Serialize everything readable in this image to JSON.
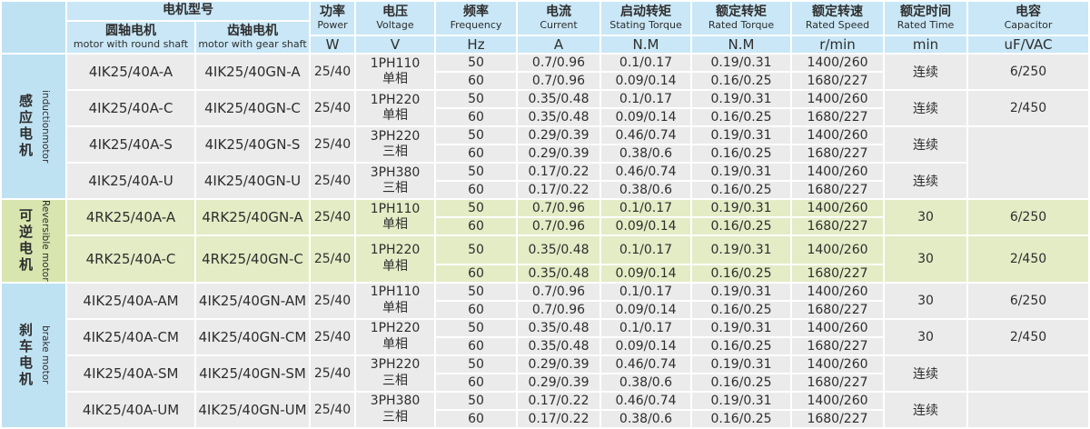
{
  "colors": {
    "header_blue": "#c9e7f6",
    "category_blue": "#bfe2f3",
    "category_green": "#d8e5ae",
    "row_gray": "#ebebec",
    "row_green": "#e3ecc5",
    "text": "#2e2e2e"
  },
  "header": {
    "model_group": "电机型号",
    "columns": [
      {
        "cn": "圆轴电机",
        "en": "motor with round shaft"
      },
      {
        "cn": "齿轴电机",
        "en": "motor with gear shaft"
      },
      {
        "cn": "功率",
        "en": "Power",
        "unit": "W"
      },
      {
        "cn": "电压",
        "en": "Voltage",
        "unit": "V"
      },
      {
        "cn": "频率",
        "en": "Frequency",
        "unit": "Hz"
      },
      {
        "cn": "电流",
        "en": "Current",
        "unit": "A"
      },
      {
        "cn": "启动转矩",
        "en": "Stating Torque",
        "unit": "N.M"
      },
      {
        "cn": "额定转矩",
        "en": "Rated Torque",
        "unit": "N.M"
      },
      {
        "cn": "额定转速",
        "en": "Rated Speed",
        "unit": "r/min"
      },
      {
        "cn": "额定时间",
        "en": "Rated Time",
        "unit": "min"
      },
      {
        "cn": "电容",
        "en": "Capacitor",
        "unit": "uF/VAC"
      }
    ]
  },
  "sections": [
    {
      "id": "induction",
      "cn": "感应电机",
      "en": "inductionmotor",
      "theme": "blue",
      "groups": [
        {
          "round": "4IK25/40A-A",
          "gear": "4IK25/40GN-A",
          "power": "25/40",
          "voltage": [
            "1PH110",
            "单相"
          ],
          "rows": [
            [
              "50",
              "0.7/0.96",
              "0.1/0.17",
              "0.19/0.31",
              "1400/260"
            ],
            [
              "60",
              "0.7/0.96",
              "0.09/0.14",
              "0.16/0.25",
              "1680/227"
            ]
          ],
          "time": "连续",
          "cap": "6/250"
        },
        {
          "round": "4IK25/40A-C",
          "gear": "4IK25/40GN-C",
          "power": "25/40",
          "voltage": [
            "1PH220",
            "单相"
          ],
          "rows": [
            [
              "50",
              "0.35/0.48",
              "0.1/0.17",
              "0.19/0.31",
              "1400/260"
            ],
            [
              "60",
              "0.35/0.48",
              "0.09/0.14",
              "0.16/0.25",
              "1680/227"
            ]
          ],
          "time": "连续",
          "cap": "2/450"
        },
        {
          "round": "4IK25/40A-S",
          "gear": "4IK25/40GN-S",
          "power": "25/40",
          "voltage": [
            "3PH220",
            "三相"
          ],
          "rows": [
            [
              "50",
              "0.29/0.39",
              "0.46/0.74",
              "0.19/0.31",
              "1400/260"
            ],
            [
              "60",
              "0.29/0.39",
              "0.38/0.6",
              "0.16/0.25",
              "1680/227"
            ]
          ],
          "time": "连续",
          "cap": "",
          "capMerge": true
        },
        {
          "round": "4IK25/40A-U",
          "gear": "4IK25/40GN-U",
          "power": "25/40",
          "voltage": [
            "3PH380",
            "三相"
          ],
          "rows": [
            [
              "50",
              "0.17/0.22",
              "0.46/0.74",
              "0.19/0.31",
              "1400/260"
            ],
            [
              "60",
              "0.17/0.22",
              "0.38/0.6",
              "0.16/0.25",
              "1680/227"
            ]
          ],
          "time": "连续",
          "capSkip": true
        }
      ]
    },
    {
      "id": "reversible",
      "cn": "可逆电机",
      "en": "Reversible motor",
      "theme": "green",
      "groups": [
        {
          "round": "4RK25/40A-A",
          "gear": "4RK25/40GN-A",
          "power": "25/40",
          "voltage": [
            "1PH110",
            "单相"
          ],
          "rows": [
            [
              "50",
              "0.7/0.96",
              "0.1/0.17",
              "0.19/0.31",
              "1400/260"
            ],
            [
              "60",
              "0.7/0.96",
              "0.09/0.14",
              "0.16/0.25",
              "1680/227"
            ]
          ],
          "time": "30",
          "cap": "6/250"
        },
        {
          "round": "4RK25/40A-C",
          "gear": "4RK25/40GN-C",
          "power": "25/40",
          "voltage": [
            "1PH220",
            "单相"
          ],
          "rows": [
            [
              "50",
              "0.35/0.48",
              "0.1/0.17",
              "0.19/0.31",
              "1400/260"
            ],
            [
              "60",
              "0.35/0.48",
              "0.09/0.14",
              "0.16/0.25",
              "1680/227"
            ]
          ],
          "time": "30",
          "cap": "2/450"
        }
      ]
    },
    {
      "id": "brake",
      "cn": "刹车电机",
      "en": "brake motor",
      "theme": "blue",
      "groups": [
        {
          "round": "4IK25/40A-AM",
          "gear": "4IK25/40GN-AM",
          "power": "25/40",
          "voltage": [
            "1PH110",
            "单相"
          ],
          "rows": [
            [
              "50",
              "0.7/0.96",
              "0.1/0.17",
              "0.19/0.31",
              "1400/260"
            ],
            [
              "60",
              "0.7/0.96",
              "0.09/0.14",
              "0.16/0.25",
              "1680/227"
            ]
          ],
          "time": "30",
          "cap": "6/250"
        },
        {
          "round": "4IK25/40A-CM",
          "gear": "4IK25/40GN-CM",
          "power": "25/40",
          "voltage": [
            "1PH220",
            "单相"
          ],
          "rows": [
            [
              "50",
              "0.35/0.48",
              "0.1/0.17",
              "0.19/0.31",
              "1400/260"
            ],
            [
              "60",
              "0.35/0.48",
              "0.09/0.14",
              "0.16/0.25",
              "1680/227"
            ]
          ],
          "time": "30",
          "cap": "2/450"
        },
        {
          "round": "4IK25/40A-SM",
          "gear": "4IK25/40GN-SM",
          "power": "25/40",
          "voltage": [
            "3PH220",
            "三相"
          ],
          "rows": [
            [
              "50",
              "0.29/0.39",
              "0.46/0.74",
              "0.19/0.31",
              "1400/260"
            ],
            [
              "60",
              "0.29/0.39",
              "0.38/0.6",
              "0.16/0.25",
              "1680/227"
            ]
          ],
          "time": "连续",
          "cap": ""
        },
        {
          "round": "4IK25/40A-UM",
          "gear": "4IK25/40GN-UM",
          "power": "25/40",
          "voltage": [
            "3PH380",
            "三相"
          ],
          "rows": [
            [
              "50",
              "0.17/0.22",
              "0.46/0.74",
              "0.19/0.31",
              "1400/260"
            ],
            [
              "60",
              "0.17/0.22",
              "0.38/0.6",
              "0.16/0.25",
              "1680/227"
            ]
          ],
          "time": "连续",
          "cap": ""
        }
      ]
    }
  ]
}
